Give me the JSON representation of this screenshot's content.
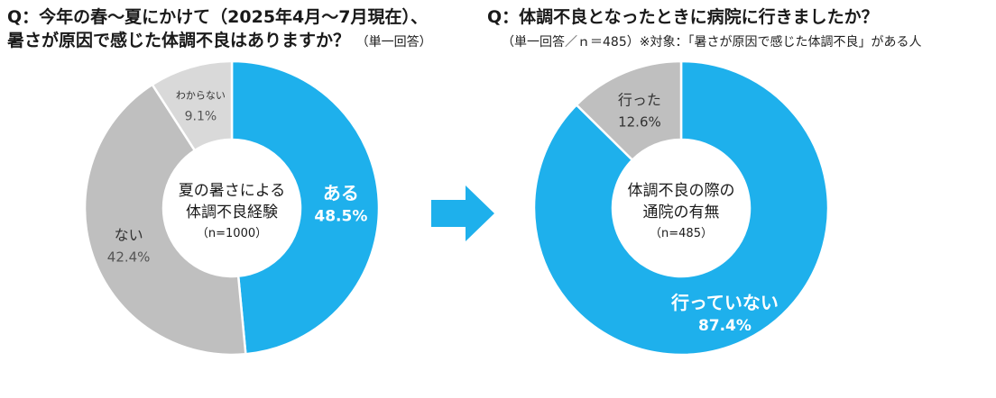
{
  "left": {
    "question_line1": "Q：今年の春～夏にかけて（2025年4月～7月現在）、",
    "question_line2": "暑さが原因で感じた体調不良はありますか？",
    "question_note": "（単一回答）"
  },
  "right": {
    "question_line1": "Q：体調不良となったときに病院に行きましたか？",
    "question_note": "（単一回答／ｎ＝485）※対象：「暑さが原因で感じた体調不良」がある人"
  },
  "arrow_icon": "right-arrow-icon",
  "chart_data": [
    {
      "type": "pie",
      "variant": "donut",
      "center_text": [
        "夏の暑さによる",
        "体調不良経験",
        "（n=1000）"
      ],
      "slices": [
        {
          "label": "ある",
          "value": 48.5,
          "value_text": "48.5%",
          "color": "#1eb0ec"
        },
        {
          "label": "ない",
          "value": 42.4,
          "value_text": "42.4%",
          "color": "#bfbfbf"
        },
        {
          "label": "わからない",
          "value": 9.1,
          "value_text": "9.1%",
          "color": "#d9d9d9"
        }
      ]
    },
    {
      "type": "pie",
      "variant": "donut",
      "center_text": [
        "体調不良の際の",
        "通院の有無",
        "（n=485）"
      ],
      "slices": [
        {
          "label": "行っていない",
          "value": 87.4,
          "value_text": "87.4%",
          "color": "#1eb0ec"
        },
        {
          "label": "行った",
          "value": 12.6,
          "value_text": "12.6%",
          "color": "#bfbfbf"
        }
      ]
    }
  ]
}
